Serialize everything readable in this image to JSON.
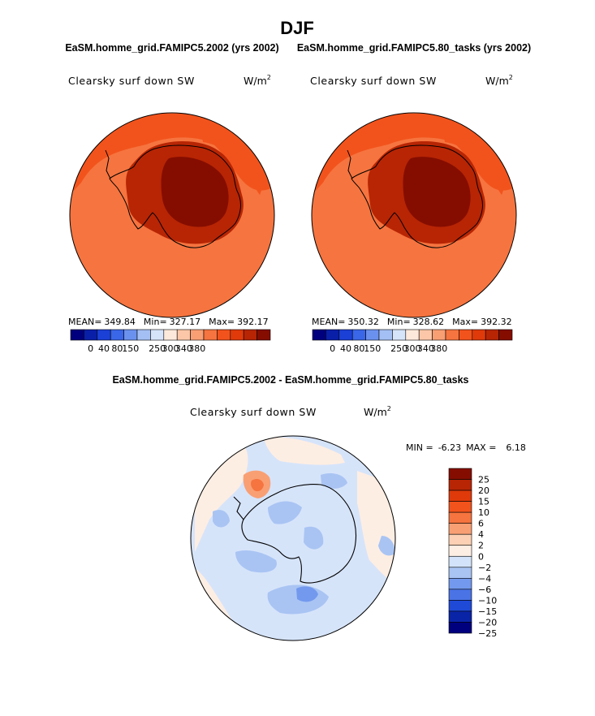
{
  "page_title": "DJF",
  "panel_left": {
    "title": "EaSM.homme_grid.FAMIPC5.2002 (yrs 2002)",
    "variable": "Clearsky surf down SW",
    "units": "W/m",
    "units_exp": "2",
    "stats": {
      "mean_label": "MEAN=",
      "mean": "349.84",
      "min_label": "Min=",
      "min": "327.17",
      "max_label": "Max=",
      "max": "392.17"
    },
    "colorbar_labels": [
      "0",
      "40",
      "80",
      "150",
      "250",
      "300",
      "340",
      "380"
    ]
  },
  "panel_right": {
    "title": "EaSM.homme_grid.FAMIPC5.80_tasks (yrs 2002)",
    "variable": "Clearsky surf down SW",
    "units": "W/m",
    "units_exp": "2",
    "stats": {
      "mean_label": "MEAN=",
      "mean": "350.32",
      "min_label": "Min=",
      "min": "328.62",
      "max_label": "Max=",
      "max": "392.32"
    },
    "colorbar_labels": [
      "0",
      "40",
      "80",
      "150",
      "250",
      "300",
      "340",
      "380"
    ]
  },
  "panel_diff": {
    "title": "EaSM.homme_grid.FAMIPC5.2002 - EaSM.homme_grid.FAMIPC5.80_tasks",
    "variable": "Clearsky surf down SW",
    "units": "W/m",
    "units_exp": "2",
    "stats": {
      "min_label": "MIN =",
      "min": "-6.23",
      "max_label": "MAX =",
      "max": "6.18"
    },
    "colorbar_labels": [
      "25",
      "20",
      "15",
      "10",
      "6",
      "4",
      "2",
      "0",
      "−2",
      "−4",
      "−6",
      "−10",
      "−15",
      "−20",
      "−25"
    ]
  },
  "colors": {
    "abs_scale": [
      "#00007f",
      "#0a1fa8",
      "#1b40d6",
      "#3a66e8",
      "#6b91ef",
      "#a4bff3",
      "#d6e4fa",
      "#fde9db",
      "#fbc7a8",
      "#f99f74",
      "#f6743f",
      "#f2531c",
      "#e03a0a",
      "#b72504",
      "#850d00"
    ],
    "diff_scale": [
      "#850d00",
      "#b72504",
      "#e03a0a",
      "#f2531c",
      "#f6743f",
      "#f99f74",
      "#fbd0b4",
      "#fdeee3",
      "#d2e3fa",
      "#a9c4f3",
      "#7399ee",
      "#4a73e6",
      "#1f4ad8",
      "#0a24a8",
      "#00007f"
    ]
  }
}
